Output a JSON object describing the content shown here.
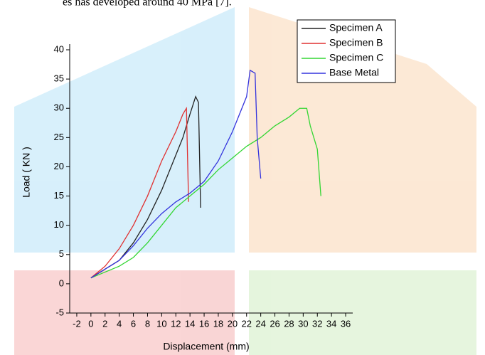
{
  "text_above": "es has developed around 40 MPa [7].",
  "chart_data": {
    "type": "line",
    "xlabel": "Displacement (mm)",
    "ylabel": "Load ( KN )",
    "xlim": [
      -3,
      37
    ],
    "ylim": [
      -5,
      40
    ],
    "xticks": [
      -2,
      0,
      2,
      4,
      6,
      8,
      10,
      12,
      14,
      16,
      18,
      20,
      22,
      24,
      26,
      28,
      30,
      32,
      34,
      36
    ],
    "yticks": [
      -5,
      0,
      5,
      10,
      15,
      20,
      25,
      30,
      35,
      40
    ],
    "series": [
      {
        "name": "Specimen A",
        "color": "#222222",
        "x": [
          0,
          2,
          4,
          6,
          8,
          10,
          12,
          13,
          14,
          14.8,
          15.2,
          15.5
        ],
        "values": [
          1,
          2.5,
          4,
          7,
          11,
          16,
          22,
          25,
          29,
          32,
          31,
          13
        ]
      },
      {
        "name": "Specimen B",
        "color": "#e03030",
        "x": [
          0,
          2,
          4,
          6,
          8,
          10,
          12,
          13,
          13.5,
          13.8
        ],
        "values": [
          1,
          3,
          6,
          10,
          15,
          21,
          26,
          29,
          30,
          14
        ]
      },
      {
        "name": "Specimen C",
        "color": "#33d633",
        "x": [
          0,
          2,
          4,
          6,
          8,
          10,
          12,
          14,
          16,
          18,
          20,
          22,
          24,
          26,
          28,
          29.5,
          30.5,
          31,
          32,
          32.5
        ],
        "values": [
          1,
          2,
          3,
          4.5,
          7,
          10,
          13,
          15,
          17,
          19.5,
          21.5,
          23.5,
          25,
          27,
          28.5,
          30,
          30,
          27,
          23,
          15
        ]
      },
      {
        "name": "Base Metal",
        "color": "#3333dd",
        "x": [
          0,
          2,
          4,
          6,
          8,
          10,
          12,
          14,
          16,
          18,
          20,
          22,
          22.5,
          23.2,
          23.5,
          24
        ],
        "values": [
          1,
          2.5,
          4,
          6.5,
          9.5,
          12,
          14,
          15.5,
          17.5,
          21,
          26,
          32,
          36.5,
          36,
          25,
          18
        ]
      }
    ],
    "legend": "top-right"
  }
}
